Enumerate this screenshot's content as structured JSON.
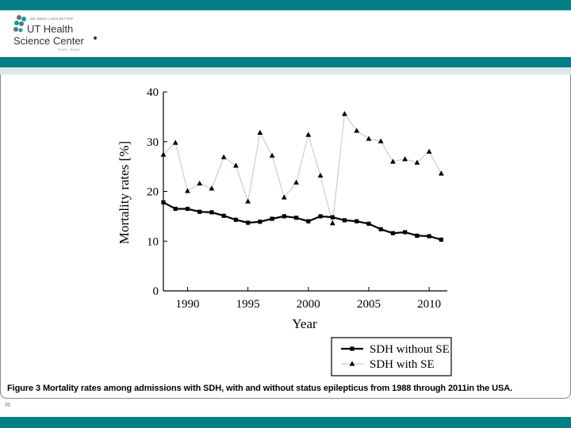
{
  "header": {
    "tagline": "WE MAKE LIVES BETTER",
    "logo_line1": "UT Health",
    "logo_line2": "Science Center",
    "logo_sub": "TYLER, TEXAS"
  },
  "colors": {
    "teal": "#007f86",
    "light_band": "#dfe6e8",
    "without_se": "#000000",
    "with_se_line": "#c9cbe0"
  },
  "chart_data": {
    "type": "line",
    "xlabel": "Year",
    "ylabel": "Mortality rates [%]",
    "xlim": [
      1988,
      2011.5
    ],
    "ylim": [
      0,
      40
    ],
    "x_ticks": [
      1990,
      1995,
      2000,
      2005,
      2010
    ],
    "y_ticks": [
      0,
      10,
      20,
      30,
      40
    ],
    "x": [
      1988,
      1989,
      1990,
      1991,
      1992,
      1993,
      1994,
      1995,
      1996,
      1997,
      1998,
      1999,
      2000,
      2001,
      2002,
      2003,
      2004,
      2005,
      2006,
      2007,
      2008,
      2009,
      2010,
      2011
    ],
    "series": [
      {
        "name": "SDH without SE",
        "marker": "square",
        "values": [
          17.8,
          16.5,
          16.5,
          15.9,
          15.8,
          15.1,
          14.3,
          13.7,
          13.9,
          14.5,
          15.0,
          14.7,
          14.0,
          15.0,
          14.8,
          14.2,
          14.0,
          13.5,
          12.4,
          11.6,
          11.8,
          11.1,
          11.0,
          10.3
        ]
      },
      {
        "name": "SDH with SE",
        "marker": "triangle",
        "values": [
          27.4,
          29.8,
          20.1,
          21.6,
          20.6,
          26.9,
          25.2,
          18.0,
          31.8,
          27.2,
          18.8,
          21.8,
          31.4,
          23.2,
          13.6,
          35.6,
          32.2,
          30.6,
          30.1,
          26.0,
          26.5,
          25.8,
          28.0,
          23.6
        ]
      }
    ],
    "legend_position": "bottom-right"
  },
  "caption": {
    "label": "Figure 3",
    "text": "Mortality rates among admissions with SDH, with and without status epilepticus from 1988 through 2011in the USA."
  },
  "footer": {
    "slide_number": "70"
  }
}
